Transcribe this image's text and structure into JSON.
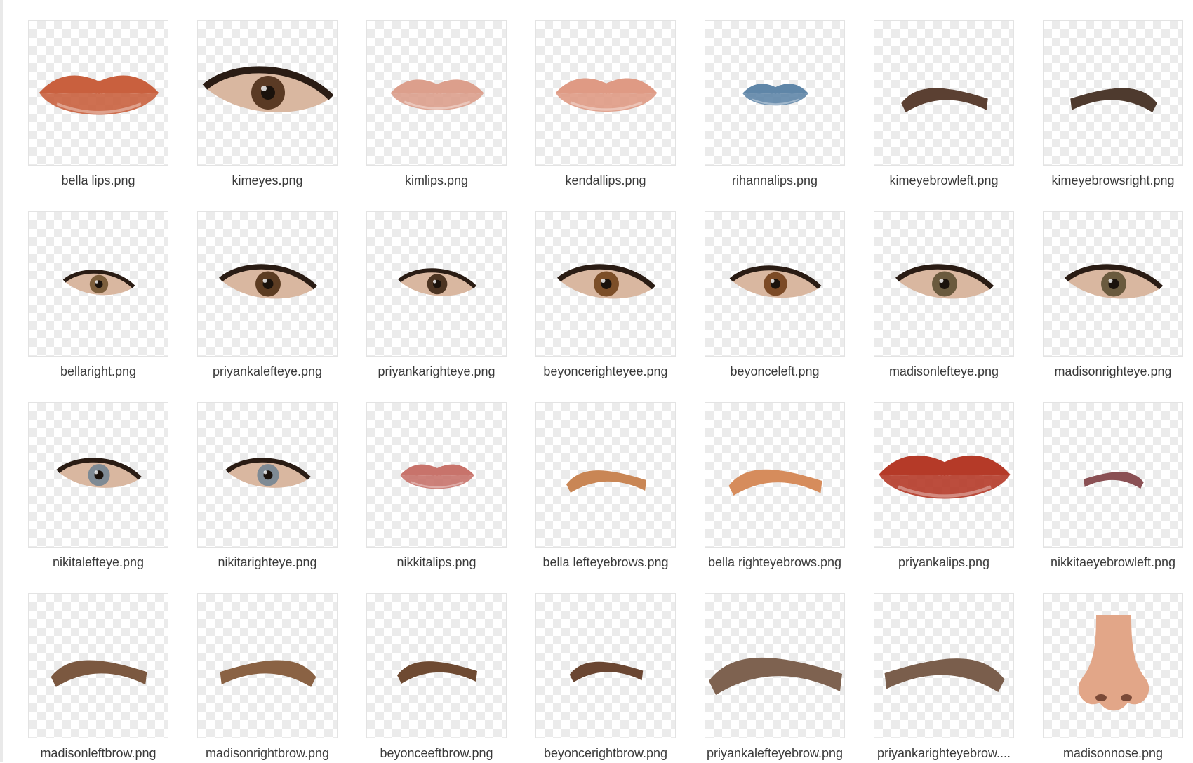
{
  "files": [
    {
      "name": "bella lips.png",
      "icon": "lips-icon",
      "color": "#c9603e"
    },
    {
      "name": "kimeyes.png",
      "icon": "eye-icon",
      "color": "#5a3a24"
    },
    {
      "name": "kimlips.png",
      "icon": "lips-icon",
      "color": "#dc9f8c"
    },
    {
      "name": "kendallips.png",
      "icon": "lips-icon",
      "color": "#df9a84"
    },
    {
      "name": "rihannalips.png",
      "icon": "lips-icon",
      "color": "#5f86a8"
    },
    {
      "name": "kimeyebrowleft.png",
      "icon": "eyebrow-icon",
      "color": "#5b4032"
    },
    {
      "name": "kimeyebrowsright.png",
      "icon": "eyebrow-icon",
      "color": "#4e3a2e"
    },
    {
      "name": "bellaright.png",
      "icon": "eye-icon",
      "color": "#7c5e3c"
    },
    {
      "name": "priyankalefteye.png",
      "icon": "eye-icon",
      "color": "#5c3c22"
    },
    {
      "name": "priyankarighteye.png",
      "icon": "eye-icon",
      "color": "#4c3422"
    },
    {
      "name": "beyoncerighteyee.png",
      "icon": "eye-icon",
      "color": "#7c4e28"
    },
    {
      "name": "beyonceleft.png",
      "icon": "eye-icon",
      "color": "#7c4a26"
    },
    {
      "name": "madisonlefteye.png",
      "icon": "eye-icon",
      "color": "#6a5a3e"
    },
    {
      "name": "madisonrighteye.png",
      "icon": "eye-icon",
      "color": "#6a5a3e"
    },
    {
      "name": "nikitalefteye.png",
      "icon": "eye-icon",
      "color": "#7e8a94"
    },
    {
      "name": "nikitarighteye.png",
      "icon": "eye-icon",
      "color": "#7e8a94"
    },
    {
      "name": "nikkitalips.png",
      "icon": "lips-icon",
      "color": "#c8736b"
    },
    {
      "name": "bella lefteyebrows.png",
      "icon": "eyebrow-icon",
      "color": "#c98655"
    },
    {
      "name": "bella righteyebrows.png",
      "icon": "eyebrow-icon",
      "color": "#d68c5c"
    },
    {
      "name": "priyankalips.png",
      "icon": "lips-icon",
      "color": "#b53a28"
    },
    {
      "name": "nikkitaeyebrowleft.png",
      "icon": "eyebrow-icon",
      "color": "#8a5054"
    },
    {
      "name": "madisonleftbrow.png",
      "icon": "eyebrow-icon",
      "color": "#7b5840"
    },
    {
      "name": "madisonrightbrow.png",
      "icon": "eyebrow-icon",
      "color": "#8a6244"
    },
    {
      "name": "beyonceeftbrow.png",
      "icon": "eyebrow-icon",
      "color": "#6e4a32"
    },
    {
      "name": "beyoncerightbrow.png",
      "icon": "eyebrow-icon",
      "color": "#6a4632"
    },
    {
      "name": "priyankalefteyebrow.png",
      "icon": "eyebrow-icon",
      "color": "#7e6250"
    },
    {
      "name": "priyankarighteyebrow....",
      "icon": "eyebrow-icon",
      "color": "#7a5e4c"
    },
    {
      "name": "madisonnose.png",
      "icon": "nose-icon",
      "color": "#e2a688"
    }
  ]
}
